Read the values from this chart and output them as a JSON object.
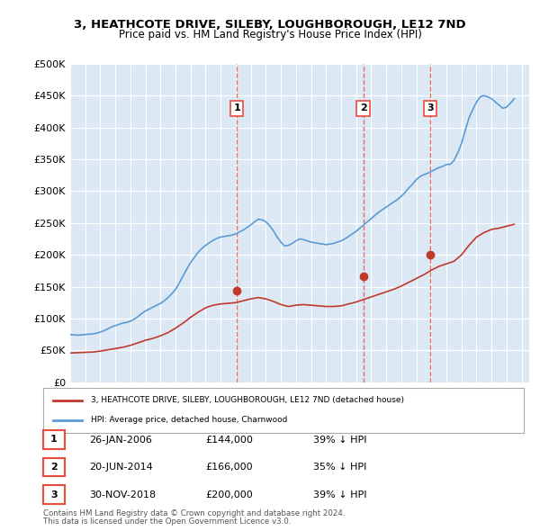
{
  "title": "3, HEATHCOTE DRIVE, SILEBY, LOUGHBOROUGH, LE12 7ND",
  "subtitle": "Price paid vs. HM Land Registry's House Price Index (HPI)",
  "ylabel": "",
  "xlabel": "",
  "bg_color": "#dce9f5",
  "fig_bg": "#ffffff",
  "sales": [
    {
      "label": "1",
      "date_str": "26-JAN-2006",
      "date_num": 2006.07,
      "price": 144000
    },
    {
      "label": "2",
      "date_str": "20-JUN-2014",
      "date_num": 2014.47,
      "price": 166000
    },
    {
      "label": "3",
      "date_str": "30-NOV-2018",
      "date_num": 2018.92,
      "price": 200000
    }
  ],
  "sale_pct": [
    "39% ↓ HPI",
    "35% ↓ HPI",
    "39% ↓ HPI"
  ],
  "legend_property": "3, HEATHCOTE DRIVE, SILEBY, LOUGHBOROUGH, LE12 7ND (detached house)",
  "legend_hpi": "HPI: Average price, detached house, Charnwood",
  "footer1": "Contains HM Land Registry data © Crown copyright and database right 2024.",
  "footer2": "This data is licensed under the Open Government Licence v3.0.",
  "hpi_color": "#5b9bd5",
  "sale_color": "#c0392b",
  "vline_color": "#e74c3c",
  "marker_color": "#c0392b",
  "ylim": [
    0,
    500000
  ],
  "yticks": [
    0,
    50000,
    100000,
    150000,
    200000,
    250000,
    300000,
    350000,
    400000,
    450000,
    500000
  ],
  "ytick_labels": [
    "£0",
    "£50K",
    "£100K",
    "£150K",
    "£200K",
    "£250K",
    "£300K",
    "£350K",
    "£400K",
    "£450K",
    "£500K"
  ],
  "xlim_start": 1995.0,
  "xlim_end": 2025.5,
  "hpi_data": {
    "years": [
      1995.0,
      1995.25,
      1995.5,
      1995.75,
      1996.0,
      1996.25,
      1996.5,
      1996.75,
      1997.0,
      1997.25,
      1997.5,
      1997.75,
      1998.0,
      1998.25,
      1998.5,
      1998.75,
      1999.0,
      1999.25,
      1999.5,
      1999.75,
      2000.0,
      2000.25,
      2000.5,
      2000.75,
      2001.0,
      2001.25,
      2001.5,
      2001.75,
      2002.0,
      2002.25,
      2002.5,
      2002.75,
      2003.0,
      2003.25,
      2003.5,
      2003.75,
      2004.0,
      2004.25,
      2004.5,
      2004.75,
      2005.0,
      2005.25,
      2005.5,
      2005.75,
      2006.0,
      2006.25,
      2006.5,
      2006.75,
      2007.0,
      2007.25,
      2007.5,
      2007.75,
      2008.0,
      2008.25,
      2008.5,
      2008.75,
      2009.0,
      2009.25,
      2009.5,
      2009.75,
      2010.0,
      2010.25,
      2010.5,
      2010.75,
      2011.0,
      2011.25,
      2011.5,
      2011.75,
      2012.0,
      2012.25,
      2012.5,
      2012.75,
      2013.0,
      2013.25,
      2013.5,
      2013.75,
      2014.0,
      2014.25,
      2014.5,
      2014.75,
      2015.0,
      2015.25,
      2015.5,
      2015.75,
      2016.0,
      2016.25,
      2016.5,
      2016.75,
      2017.0,
      2017.25,
      2017.5,
      2017.75,
      2018.0,
      2018.25,
      2018.5,
      2018.75,
      2019.0,
      2019.25,
      2019.5,
      2019.75,
      2020.0,
      2020.25,
      2020.5,
      2020.75,
      2021.0,
      2021.25,
      2021.5,
      2021.75,
      2022.0,
      2022.25,
      2022.5,
      2022.75,
      2023.0,
      2023.25,
      2023.5,
      2023.75,
      2024.0,
      2024.25,
      2024.5
    ],
    "values": [
      75000,
      74500,
      74000,
      74500,
      75000,
      75500,
      76000,
      77000,
      79000,
      81000,
      84000,
      87000,
      89000,
      91000,
      93000,
      94000,
      96000,
      99000,
      103000,
      108000,
      112000,
      115000,
      118000,
      121000,
      124000,
      128000,
      133000,
      139000,
      146000,
      156000,
      167000,
      178000,
      188000,
      196000,
      204000,
      210000,
      215000,
      219000,
      223000,
      226000,
      228000,
      229000,
      230000,
      231000,
      233000,
      236000,
      239000,
      243000,
      247000,
      252000,
      256000,
      255000,
      252000,
      246000,
      238000,
      228000,
      220000,
      214000,
      215000,
      218000,
      222000,
      225000,
      224000,
      222000,
      220000,
      219000,
      218000,
      217000,
      216000,
      217000,
      218000,
      220000,
      222000,
      225000,
      229000,
      233000,
      237000,
      242000,
      247000,
      252000,
      257000,
      262000,
      267000,
      271000,
      275000,
      279000,
      283000,
      287000,
      292000,
      298000,
      305000,
      311000,
      318000,
      323000,
      326000,
      328000,
      331000,
      334000,
      337000,
      339000,
      342000,
      342000,
      348000,
      360000,
      375000,
      395000,
      415000,
      428000,
      440000,
      448000,
      450000,
      448000,
      445000,
      440000,
      435000,
      430000,
      432000,
      438000,
      445000
    ]
  },
  "property_data": {
    "years": [
      1995.0,
      1995.5,
      1996.0,
      1996.5,
      1997.0,
      1997.5,
      1998.0,
      1998.5,
      1999.0,
      1999.5,
      2000.0,
      2000.5,
      2001.0,
      2001.5,
      2002.0,
      2002.5,
      2003.0,
      2003.5,
      2004.0,
      2004.5,
      2005.0,
      2005.5,
      2006.0,
      2006.5,
      2007.0,
      2007.5,
      2008.0,
      2008.5,
      2009.0,
      2009.5,
      2010.0,
      2010.5,
      2011.0,
      2011.5,
      2012.0,
      2012.5,
      2013.0,
      2013.5,
      2014.0,
      2014.5,
      2015.0,
      2015.5,
      2016.0,
      2016.5,
      2017.0,
      2017.5,
      2018.0,
      2018.5,
      2019.0,
      2019.5,
      2020.0,
      2020.5,
      2021.0,
      2021.5,
      2022.0,
      2022.5,
      2023.0,
      2023.5,
      2024.0,
      2024.5
    ],
    "values": [
      46000,
      46500,
      47000,
      47500,
      49000,
      51000,
      53000,
      55000,
      58000,
      62000,
      66000,
      69000,
      73000,
      78000,
      85000,
      93000,
      102000,
      110000,
      117000,
      121000,
      123000,
      124000,
      125000,
      128000,
      131000,
      133000,
      131000,
      127000,
      122000,
      119000,
      121000,
      122000,
      121000,
      120000,
      119000,
      119000,
      120000,
      123000,
      126000,
      130000,
      134000,
      138000,
      142000,
      146000,
      151000,
      157000,
      163000,
      169000,
      176000,
      182000,
      186000,
      190000,
      200000,
      215000,
      228000,
      235000,
      240000,
      242000,
      245000,
      248000
    ]
  }
}
